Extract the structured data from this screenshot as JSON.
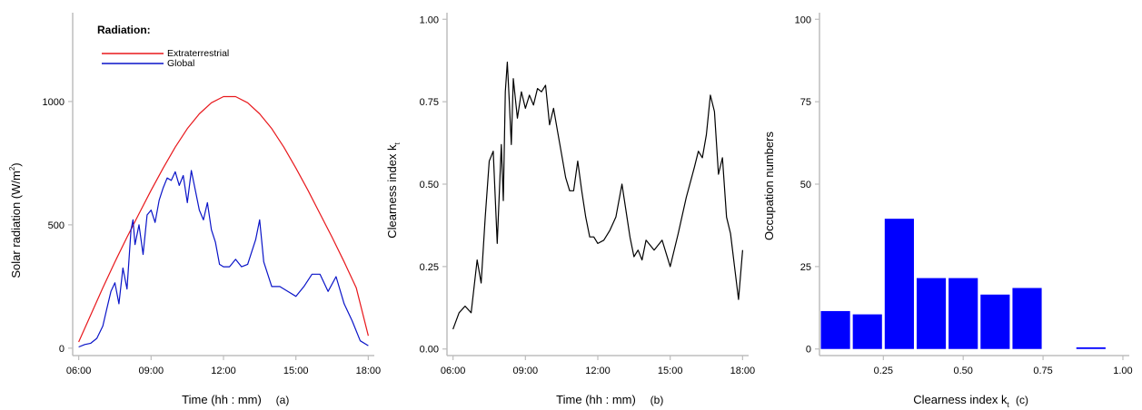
{
  "chart_data": [
    {
      "type": "line",
      "panel_label": "(a)",
      "xlabel": "Time (hh : mm)",
      "ylabel": "Solar radiation (W/m²)",
      "ylabel_main": "Solar radiation (W/m",
      "ylabel_sup": "2",
      "ylabel_close": ")",
      "x_ticks": [
        "06:00",
        "09:00",
        "12:00",
        "15:00",
        "18:00"
      ],
      "y_ticks": [
        "0",
        "500",
        "1000"
      ],
      "xlim": [
        "05:45",
        "18:15"
      ],
      "ylim": [
        -30,
        1360
      ],
      "legend_title": "Radiation:",
      "legend_position": "top-left",
      "series": [
        {
          "name": "Extraterrestrial",
          "color": "#e8181c",
          "x": [
            "06:00",
            "06:30",
            "07:00",
            "07:30",
            "08:00",
            "08:30",
            "09:00",
            "09:30",
            "10:00",
            "10:30",
            "11:00",
            "11:30",
            "12:00",
            "12:30",
            "13:00",
            "13:30",
            "14:00",
            "14:30",
            "15:00",
            "15:30",
            "16:00",
            "16:30",
            "17:00",
            "17:30",
            "18:00"
          ],
          "values": [
            25,
            135,
            245,
            350,
            450,
            545,
            640,
            730,
            815,
            890,
            950,
            995,
            1020,
            1020,
            995,
            950,
            890,
            815,
            730,
            640,
            545,
            450,
            350,
            245,
            50
          ]
        },
        {
          "name": "Global",
          "color": "#0a14c8",
          "x": [
            "06:00",
            "06:15",
            "06:30",
            "06:45",
            "07:00",
            "07:10",
            "07:20",
            "07:30",
            "07:40",
            "07:50",
            "08:00",
            "08:10",
            "08:15",
            "08:20",
            "08:30",
            "08:40",
            "08:50",
            "09:00",
            "09:10",
            "09:20",
            "09:30",
            "09:40",
            "09:50",
            "10:00",
            "10:10",
            "10:20",
            "10:30",
            "10:40",
            "10:50",
            "11:00",
            "11:10",
            "11:20",
            "11:30",
            "11:40",
            "11:50",
            "12:00",
            "12:15",
            "12:30",
            "12:45",
            "13:00",
            "13:10",
            "13:20",
            "13:30",
            "13:40",
            "13:50",
            "14:00",
            "14:20",
            "14:40",
            "15:00",
            "15:20",
            "15:40",
            "16:00",
            "16:20",
            "16:40",
            "17:00",
            "17:20",
            "17:40",
            "18:00"
          ],
          "values": [
            5,
            15,
            20,
            40,
            90,
            160,
            230,
            265,
            180,
            325,
            240,
            480,
            520,
            420,
            500,
            380,
            540,
            560,
            510,
            600,
            650,
            690,
            680,
            715,
            660,
            700,
            590,
            720,
            640,
            560,
            520,
            590,
            480,
            430,
            340,
            330,
            330,
            360,
            330,
            340,
            390,
            440,
            520,
            350,
            300,
            250,
            250,
            230,
            210,
            250,
            300,
            300,
            230,
            290,
            180,
            110,
            30,
            10
          ]
        }
      ]
    },
    {
      "type": "line",
      "panel_label": "(b)",
      "xlabel": "Time (hh : mm)",
      "ylabel": "Clearness index kt",
      "ylabel_main": "Clearness index k",
      "ylabel_sub": "t",
      "x_ticks": [
        "06:00",
        "09:00",
        "12:00",
        "15:00",
        "18:00"
      ],
      "y_ticks": [
        "0.00",
        "0.25",
        "0.50",
        "0.75",
        "1.00"
      ],
      "xlim": [
        "05:45",
        "18:15"
      ],
      "ylim": [
        -0.02,
        1.02
      ],
      "series": [
        {
          "color": "#000000",
          "x": [
            "06:00",
            "06:15",
            "06:30",
            "06:45",
            "07:00",
            "07:10",
            "07:20",
            "07:30",
            "07:40",
            "07:50",
            "08:00",
            "08:05",
            "08:10",
            "08:15",
            "08:20",
            "08:25",
            "08:30",
            "08:40",
            "08:50",
            "09:00",
            "09:10",
            "09:20",
            "09:30",
            "09:40",
            "09:50",
            "10:00",
            "10:10",
            "10:20",
            "10:30",
            "10:40",
            "10:50",
            "11:00",
            "11:10",
            "11:20",
            "11:30",
            "11:40",
            "11:50",
            "12:00",
            "12:15",
            "12:30",
            "12:45",
            "13:00",
            "13:10",
            "13:20",
            "13:30",
            "13:40",
            "13:50",
            "14:00",
            "14:20",
            "14:40",
            "15:00",
            "15:20",
            "15:40",
            "16:00",
            "16:10",
            "16:20",
            "16:30",
            "16:40",
            "16:50",
            "17:00",
            "17:10",
            "17:20",
            "17:30",
            "17:40",
            "17:50",
            "18:00"
          ],
          "values": [
            0.06,
            0.11,
            0.13,
            0.11,
            0.27,
            0.2,
            0.4,
            0.57,
            0.6,
            0.32,
            0.62,
            0.45,
            0.78,
            0.87,
            0.75,
            0.62,
            0.82,
            0.7,
            0.78,
            0.73,
            0.77,
            0.74,
            0.79,
            0.78,
            0.8,
            0.68,
            0.73,
            0.66,
            0.59,
            0.52,
            0.48,
            0.48,
            0.57,
            0.48,
            0.4,
            0.34,
            0.34,
            0.32,
            0.33,
            0.36,
            0.4,
            0.5,
            0.42,
            0.34,
            0.28,
            0.3,
            0.27,
            0.33,
            0.3,
            0.33,
            0.25,
            0.35,
            0.46,
            0.55,
            0.6,
            0.58,
            0.65,
            0.77,
            0.72,
            0.53,
            0.58,
            0.4,
            0.35,
            0.25,
            0.15,
            0.3
          ]
        }
      ]
    },
    {
      "type": "bar",
      "panel_label": "(c)",
      "xlabel": "Clearness index kt",
      "xlabel_main": "Clearness index k",
      "xlabel_sub": "t",
      "ylabel": "Occupation numbers",
      "x_ticks": [
        "0.25",
        "0.50",
        "0.75",
        "1.00"
      ],
      "y_ticks": [
        "0",
        "25",
        "50",
        "75",
        "100"
      ],
      "xlim": [
        0.05,
        1.02
      ],
      "ylim": [
        -2,
        102
      ],
      "bin_width": 0.1,
      "bar_color": "#0000ff",
      "bin_starts": [
        0.05,
        0.15,
        0.25,
        0.35,
        0.45,
        0.55,
        0.65,
        0.75,
        0.85
      ],
      "values": [
        11.5,
        10.5,
        39.5,
        21.5,
        21.5,
        16.5,
        18.5,
        0,
        0.5
      ]
    }
  ]
}
